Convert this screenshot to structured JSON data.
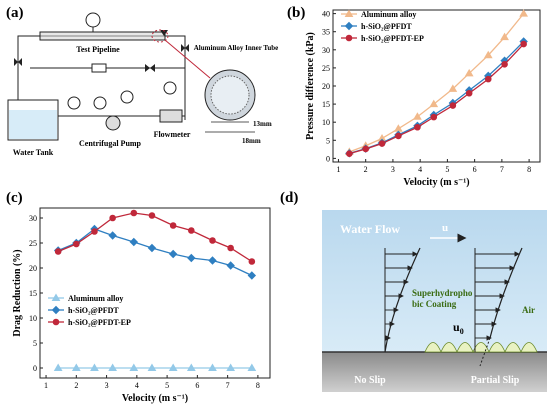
{
  "panels": {
    "a": {
      "label": "(a)",
      "texts": {
        "test_pipeline": "Test Pipeline",
        "water_tank": "Water Tank",
        "centrifugal_pump": "Centrifugal Pump",
        "flowmeter": "Flowmeter",
        "inner_tube": "Aluminum Alloy Inner Tube",
        "dim_13": "13mm",
        "dim_18": "18mm"
      }
    },
    "b": {
      "label": "(b)"
    },
    "c": {
      "label": "(c)"
    },
    "d": {
      "label": "(d)",
      "texts": {
        "water_flow": "Water Flow",
        "u": "u",
        "coating_line1": "Superhydropho",
        "coating_line2": "bic Coating",
        "air": "Air",
        "u0": "u",
        "u0_sub": "0",
        "no_slip": "No Slip",
        "partial_slip": "Partial Slip"
      }
    }
  },
  "chart_data": [
    {
      "type": "line",
      "panel": "b",
      "xlabel": "Velocity (m s⁻¹)",
      "ylabel": "Pressure difference (kPa)",
      "xlim": [
        0.8,
        8.4
      ],
      "ylim": [
        -1,
        41
      ],
      "xticks": [
        1,
        2,
        3,
        4,
        5,
        6,
        7,
        8
      ],
      "yticks": [
        0,
        5,
        10,
        15,
        20,
        25,
        30,
        35,
        40
      ],
      "legend_position": "top-left",
      "x": [
        1.4,
        2.0,
        2.6,
        3.2,
        3.9,
        4.5,
        5.2,
        5.8,
        6.5,
        7.1,
        7.8
      ],
      "series": [
        {
          "name": "Aluminum alloy",
          "color": "#f1b98b",
          "marker": "triangle",
          "values": [
            1.8,
            3.5,
            5.5,
            8.2,
            11.5,
            15.0,
            19.2,
            23.5,
            28.5,
            33.5,
            40.0
          ]
        },
        {
          "name": "h-SiO₂@PFDT",
          "color": "#2f7fc1",
          "marker": "diamond",
          "values": [
            1.4,
            2.7,
            4.3,
            6.5,
            9.0,
            12.0,
            15.3,
            18.8,
            22.8,
            27.0,
            32.3
          ]
        },
        {
          "name": "h-SiO₂@PFDT-EP",
          "color": "#c0283a",
          "marker": "circle",
          "values": [
            1.3,
            2.6,
            4.1,
            6.2,
            8.6,
            11.4,
            14.6,
            18.0,
            21.9,
            26.0,
            31.6
          ]
        }
      ]
    },
    {
      "type": "line",
      "panel": "c",
      "xlabel": "Velocity (m s⁻¹)",
      "ylabel": "Drag Reduction (%)",
      "xlim": [
        0.8,
        8.4
      ],
      "ylim": [
        -2,
        32
      ],
      "xticks": [
        1,
        2,
        3,
        4,
        5,
        6,
        7,
        8
      ],
      "yticks": [
        0,
        5,
        10,
        15,
        20,
        25,
        30
      ],
      "legend_position": "bottom-left",
      "x": [
        1.4,
        2.0,
        2.6,
        3.2,
        3.9,
        4.5,
        5.2,
        5.8,
        6.5,
        7.1,
        7.8
      ],
      "series": [
        {
          "name": "Aluminum alloy",
          "color": "#93c9e8",
          "marker": "triangle",
          "values": [
            0,
            0,
            0,
            0,
            0,
            0,
            0,
            0,
            0,
            0,
            0
          ]
        },
        {
          "name": "h-SiO₂@PFDT",
          "color": "#2f7fc1",
          "marker": "diamond",
          "values": [
            23.5,
            25.0,
            27.8,
            26.5,
            25.2,
            24.0,
            22.8,
            22.0,
            21.5,
            20.5,
            18.5
          ]
        },
        {
          "name": "h-SiO₂@PFDT-EP",
          "color": "#c0283a",
          "marker": "circle",
          "values": [
            23.3,
            24.8,
            27.3,
            30.0,
            31.0,
            30.5,
            28.5,
            27.5,
            25.5,
            24.0,
            21.3
          ]
        }
      ]
    }
  ]
}
